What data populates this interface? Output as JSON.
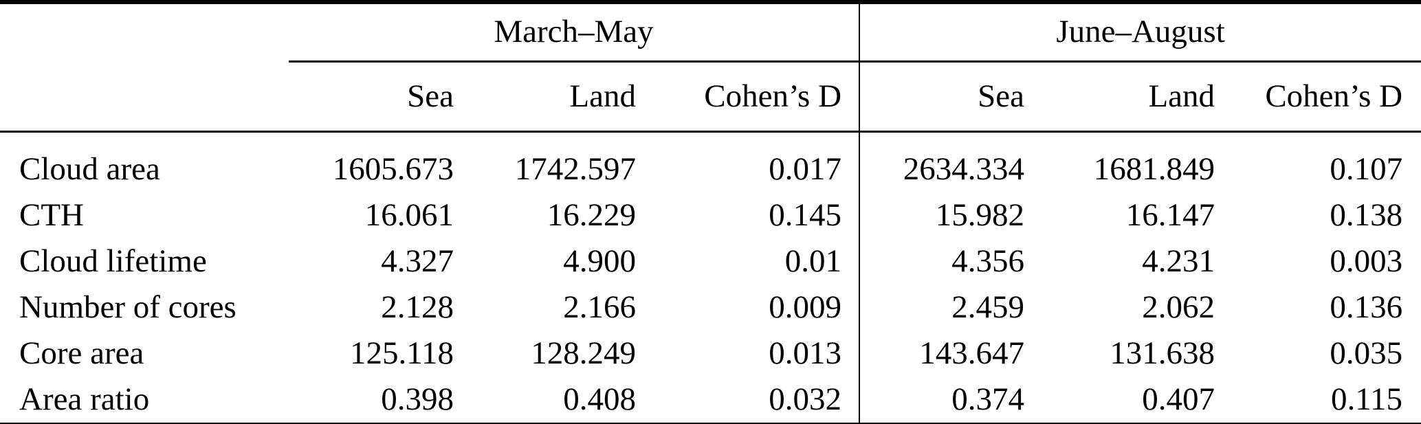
{
  "table": {
    "corner_blank": "",
    "groups": [
      {
        "label": "March–May"
      },
      {
        "label": "June–August"
      }
    ],
    "sub_headers": [
      "Sea",
      "Land",
      "Cohen’s D"
    ],
    "rows": [
      {
        "label": "Cloud area",
        "values": [
          "1605.673",
          "1742.597",
          "0.017",
          "2634.334",
          "1681.849",
          "0.107"
        ]
      },
      {
        "label": "CTH",
        "values": [
          "16.061",
          "16.229",
          "0.145",
          "15.982",
          "16.147",
          "0.138"
        ]
      },
      {
        "label": "Cloud lifetime",
        "values": [
          "4.327",
          "4.900",
          "0.01",
          "4.356",
          "4.231",
          "0.003"
        ]
      },
      {
        "label": "Number of cores",
        "values": [
          "2.128",
          "2.166",
          "0.009",
          "2.459",
          "2.062",
          "0.136"
        ]
      },
      {
        "label": "Core area",
        "values": [
          "125.118",
          "128.249",
          "0.013",
          "143.647",
          "131.638",
          "0.035"
        ]
      },
      {
        "label": "Area ratio",
        "values": [
          "0.398",
          "0.408",
          "0.032",
          "0.374",
          "0.407",
          "0.115"
        ]
      }
    ]
  },
  "chart_data": {
    "type": "table",
    "title": "",
    "column_groups": [
      "March–May",
      "June–August"
    ],
    "columns": [
      "Sea",
      "Land",
      "Cohen’s D",
      "Sea",
      "Land",
      "Cohen’s D"
    ],
    "row_labels": [
      "Cloud area",
      "CTH",
      "Cloud lifetime",
      "Number of cores",
      "Core area",
      "Area ratio"
    ],
    "values": [
      [
        1605.673,
        1742.597,
        0.017,
        2634.334,
        1681.849,
        0.107
      ],
      [
        16.061,
        16.229,
        0.145,
        15.982,
        16.147,
        0.138
      ],
      [
        4.327,
        4.9,
        0.01,
        4.356,
        4.231,
        0.003
      ],
      [
        2.128,
        2.166,
        0.009,
        2.459,
        2.062,
        0.136
      ],
      [
        125.118,
        128.249,
        0.013,
        143.647,
        131.638,
        0.035
      ],
      [
        0.398,
        0.408,
        0.032,
        0.374,
        0.407,
        0.115
      ]
    ]
  }
}
